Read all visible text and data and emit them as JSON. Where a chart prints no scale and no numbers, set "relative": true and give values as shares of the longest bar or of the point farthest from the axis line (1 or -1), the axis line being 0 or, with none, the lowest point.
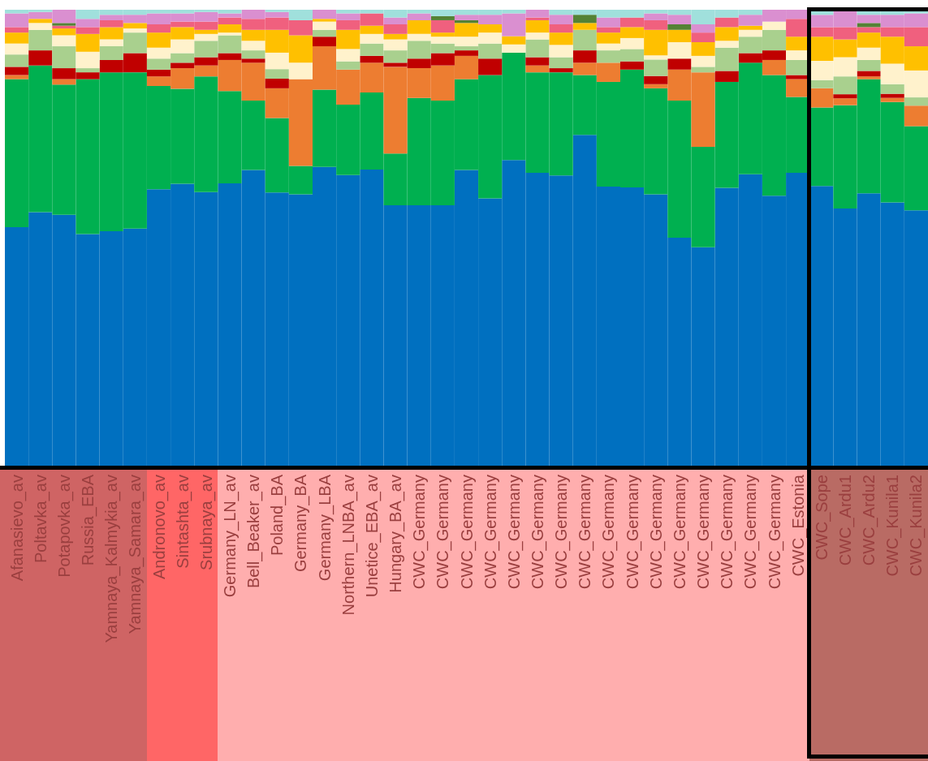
{
  "chart_data": {
    "type": "bar",
    "stacked": true,
    "relative": true,
    "categories": [
      "Afanasievo_av",
      "Poltavka_av",
      "Potapovka_av",
      "Russia_EBA",
      "Yamnaya_Kalmykia_av",
      "Yamnaya_Samara_av",
      "Andronovo_av",
      "Sintashta_av",
      "Srubnaya_av",
      "Germany_LN_av",
      "Bell_Beaker_av",
      "Poland_BA",
      "Germany_BA",
      "Germany_LBA",
      "Northern_LNBA_av",
      "Unetice_EBA_av",
      "Hungary_BA_av",
      "CWC_Germany",
      "CWC_Germany",
      "CWC_Germany",
      "CWC_Germany",
      "CWC_Germany",
      "CWC_Germany",
      "CWC_Germany",
      "CWC_Germany",
      "CWC_Germany",
      "CWC_Germany",
      "CWC_Germany",
      "CWC_Germany",
      "CWC_Germany",
      "CWC_Germany",
      "CWC_Germany",
      "CWC_Germany",
      "CWC_Estonia",
      "CWC_Sope",
      "CWC_Ardu1",
      "CWC_Ardu2",
      "CWC_Kunila1",
      "CWC_Kunila2"
    ],
    "series": [
      {
        "color": "#0070c0",
        "values": [
          0.524,
          0.557,
          0.551,
          0.509,
          0.515,
          0.521,
          0.607,
          0.619,
          0.601,
          0.62,
          0.649,
          0.6,
          0.596,
          0.656,
          0.638,
          0.65,
          0.572,
          0.572,
          0.572,
          0.649,
          0.587,
          0.671,
          0.643,
          0.637,
          0.726,
          0.613,
          0.611,
          0.596,
          0.501,
          0.48,
          0.61,
          0.64,
          0.593,
          0.643,
          0.614,
          0.565,
          0.598,
          0.578,
          0.561
        ]
      },
      {
        "color": "#00b050",
        "values": [
          0.324,
          0.321,
          0.285,
          0.339,
          0.348,
          0.342,
          0.226,
          0.208,
          0.253,
          0.202,
          0.152,
          0.163,
          0.062,
          0.169,
          0.154,
          0.169,
          0.113,
          0.235,
          0.229,
          0.199,
          0.27,
          0.235,
          0.22,
          0.226,
          0.131,
          0.229,
          0.258,
          0.232,
          0.3,
          0.22,
          0.232,
          0.244,
          0.264,
          0.166,
          0.172,
          0.226,
          0.25,
          0.22,
          0.184
        ]
      },
      {
        "color": "#ed7d31",
        "values": [
          0.009,
          0,
          0.012,
          0,
          0,
          0,
          0.021,
          0.045,
          0.024,
          0.068,
          0.083,
          0.065,
          0.19,
          0.095,
          0.077,
          0.065,
          0.19,
          0.065,
          0.077,
          0.051,
          0,
          0,
          0.015,
          0,
          0.027,
          0.042,
          0,
          0.009,
          0.068,
          0.163,
          0,
          0,
          0.033,
          0.039,
          0.042,
          0.015,
          0.006,
          0.009,
          0.045
        ]
      },
      {
        "color": "#c00000",
        "values": [
          0.018,
          0.033,
          0.024,
          0.015,
          0.027,
          0.042,
          0.015,
          0.012,
          0.018,
          0.015,
          0.009,
          0.021,
          0,
          0.021,
          0,
          0.015,
          0.009,
          0.021,
          0.027,
          0.012,
          0.036,
          0,
          0.018,
          0.009,
          0.027,
          0,
          0.018,
          0.018,
          0.024,
          0,
          0.024,
          0.021,
          0.021,
          0.009,
          0,
          0.009,
          0.012,
          0.009,
          0
        ]
      },
      {
        "color": "#a9d08e",
        "values": [
          0.027,
          0.045,
          0.048,
          0.009,
          0.03,
          0.045,
          0.024,
          0.021,
          0.036,
          0.039,
          0.018,
          0.021,
          0,
          0.015,
          0.018,
          0.027,
          0.027,
          0.039,
          0.021,
          0.009,
          0.033,
          0,
          0.039,
          0.024,
          0.045,
          0.027,
          0.027,
          0.036,
          0,
          0.012,
          0.051,
          0.036,
          0.045,
          0.033,
          0.018,
          0.039,
          0.024,
          0.021,
          0.018
        ]
      },
      {
        "color": "#fff2cc",
        "values": [
          0.024,
          0.015,
          0.024,
          0.036,
          0.015,
          0.009,
          0.024,
          0.03,
          0.015,
          0.006,
          0.021,
          0.036,
          0.036,
          0.018,
          0.027,
          0.021,
          0.024,
          0.015,
          0.015,
          0.021,
          0.024,
          0.018,
          0.015,
          0.027,
          0,
          0.015,
          0.024,
          0.009,
          0.036,
          0.024,
          0.015,
          0.015,
          0.018,
          0.021,
          0.042,
          0.042,
          0.027,
          0.045,
          0.059
        ]
      },
      {
        "color": "#ffc000",
        "values": [
          0.024,
          0.009,
          0.015,
          0.039,
          0.027,
          0.012,
          0.033,
          0.027,
          0.009,
          0.018,
          0.024,
          0.05,
          0.06,
          0.006,
          0.042,
          0.018,
          0.012,
          0.03,
          0.009,
          0.03,
          0.018,
          0.018,
          0.027,
          0.027,
          0.015,
          0.024,
          0.024,
          0.056,
          0.027,
          0.03,
          0.03,
          0.009,
          0,
          0.03,
          0.053,
          0.039,
          0.033,
          0.059,
          0.053
        ]
      },
      {
        "color": "#f0607e",
        "values": [
          0.012,
          0,
          0.006,
          0.015,
          0.015,
          0,
          0.018,
          0.012,
          0.018,
          0.015,
          0.024,
          0.027,
          0.033,
          0,
          0.021,
          0.027,
          0.021,
          0,
          0.027,
          0,
          0,
          0,
          0.006,
          0.018,
          0,
          0.012,
          0.021,
          0.021,
          0,
          0.021,
          0.021,
          0,
          0,
          0.039,
          0.021,
          0.027,
          0.012,
          0.021,
          0.042
        ]
      },
      {
        "color": "#548235",
        "values": [
          0,
          0,
          0.006,
          0,
          0,
          0,
          0,
          0,
          0,
          0,
          0,
          0,
          0,
          0,
          0,
          0,
          0,
          0,
          0.009,
          0.006,
          0,
          0,
          0,
          0,
          0.018,
          0,
          0,
          0,
          0.012,
          0,
          0,
          0,
          0,
          0,
          0,
          0,
          0.009,
          0,
          0
        ]
      },
      {
        "color": "#da8fd0",
        "values": [
          0.03,
          0.015,
          0.029,
          0.018,
          0.012,
          0.018,
          0.024,
          0.018,
          0.021,
          0.009,
          0.02,
          0.012,
          0,
          0.02,
          0.015,
          0,
          0.015,
          0.015,
          0,
          0.012,
          0.021,
          0.05,
          0.017,
          0.021,
          0,
          0.021,
          0,
          0.015,
          0.021,
          0.018,
          0,
          0.024,
          0.026,
          0.02,
          0.027,
          0.038,
          0.018,
          0.027,
          0.03
        ]
      },
      {
        "color": "#a0e0dc",
        "values": [
          0.008,
          0.005,
          0,
          0.02,
          0.011,
          0.011,
          0.008,
          0.008,
          0.005,
          0.008,
          0,
          0.005,
          0.023,
          0,
          0.008,
          0.008,
          0.017,
          0.008,
          0.014,
          0.011,
          0.011,
          0.008,
          0,
          0.011,
          0.011,
          0.017,
          0.017,
          0.008,
          0.011,
          0.032,
          0.017,
          0.011,
          0,
          0,
          0.011,
          0,
          0.011,
          0.011,
          0.008
        ]
      }
    ]
  }
}
